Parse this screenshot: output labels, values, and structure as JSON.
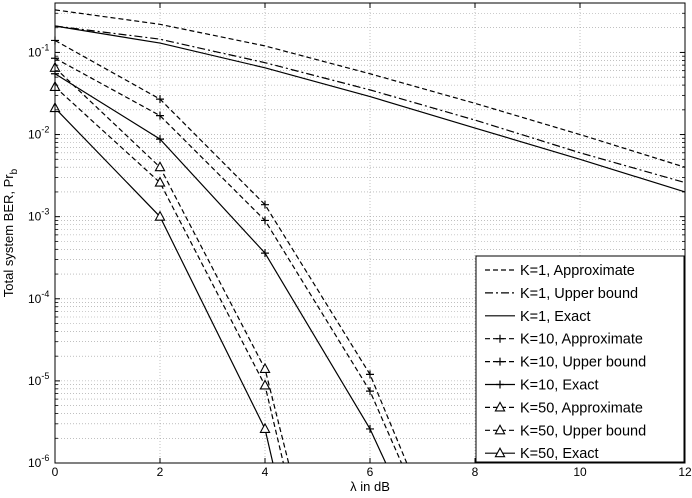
{
  "chart_data": {
    "type": "line",
    "title": "",
    "xlabel": "λ in dB",
    "ylabel": "Total system BER, Pr",
    "ylabel_sub": "b",
    "xlim": [
      0,
      12
    ],
    "ylim": [
      1e-06,
      0.4
    ],
    "y_scale": "log",
    "grid": true,
    "legend_position": "bottom-right",
    "x_ticks": [
      "0",
      "2",
      "4",
      "6",
      "8",
      "10",
      "12"
    ],
    "y_ticks": [
      {
        "base": "10",
        "exp": "-6"
      },
      {
        "base": "10",
        "exp": "-5"
      },
      {
        "base": "10",
        "exp": "-4"
      },
      {
        "base": "10",
        "exp": "-3"
      },
      {
        "base": "10",
        "exp": "-2"
      },
      {
        "base": "10",
        "exp": "-1"
      }
    ],
    "series": [
      {
        "name": "K=1, Approximate",
        "line": "dashed",
        "marker": "none",
        "x": [
          0,
          2,
          4,
          6,
          8,
          10,
          12
        ],
        "y": [
          0.33,
          0.22,
          0.12,
          0.055,
          0.024,
          0.01,
          0.004
        ]
      },
      {
        "name": "K=1, Upper bound",
        "line": "dashdot",
        "marker": "none",
        "x": [
          0,
          2,
          4,
          6,
          8,
          10,
          12
        ],
        "y": [
          0.21,
          0.145,
          0.075,
          0.035,
          0.015,
          0.006,
          0.0026
        ]
      },
      {
        "name": "K=1, Exact",
        "line": "solid",
        "marker": "none",
        "x": [
          0,
          2,
          4,
          6,
          8,
          10,
          12
        ],
        "y": [
          0.21,
          0.13,
          0.065,
          0.029,
          0.012,
          0.005,
          0.002
        ]
      },
      {
        "name": "K=10, Approximate",
        "line": "dashed",
        "marker": "plus",
        "x": [
          0,
          2,
          4,
          6,
          6.7
        ],
        "y": [
          0.14,
          0.027,
          0.0014,
          1.2e-05,
          1e-06
        ]
      },
      {
        "name": "K=10, Upper bound",
        "line": "dashed",
        "marker": "plus",
        "x": [
          0,
          2,
          4,
          6,
          6.6
        ],
        "y": [
          0.085,
          0.017,
          0.0009,
          7.5e-06,
          1e-06
        ]
      },
      {
        "name": "K=10, Exact",
        "line": "solid",
        "marker": "plus",
        "x": [
          0,
          2,
          4,
          6,
          6.3
        ],
        "y": [
          0.055,
          0.0088,
          0.00036,
          2.6e-06,
          1e-06
        ]
      },
      {
        "name": "K=50, Approximate",
        "line": "dashed",
        "marker": "triangle",
        "x": [
          0,
          2,
          4,
          4.45
        ],
        "y": [
          0.065,
          0.004,
          1.4e-05,
          1e-06
        ]
      },
      {
        "name": "K=50, Upper bound",
        "line": "dashed",
        "marker": "triangle",
        "x": [
          0,
          2,
          4,
          4.35
        ],
        "y": [
          0.038,
          0.0026,
          8.8e-06,
          1e-06
        ]
      },
      {
        "name": "K=50, Exact",
        "line": "solid",
        "marker": "triangle",
        "x": [
          0,
          2,
          4,
          4.15
        ],
        "y": [
          0.021,
          0.001,
          2.6e-06,
          1e-06
        ]
      }
    ]
  }
}
